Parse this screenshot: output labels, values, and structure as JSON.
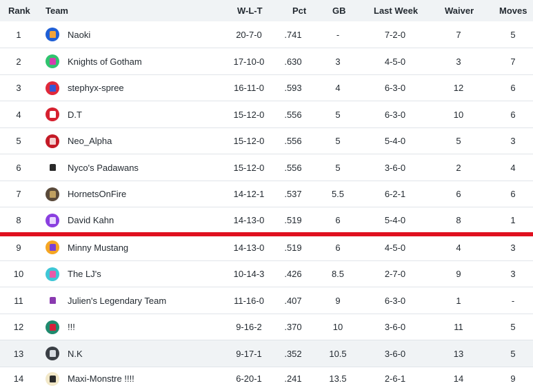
{
  "headers": {
    "rank": "Rank",
    "team": "Team",
    "wlt": "W-L-T",
    "pct": "Pct",
    "gb": "GB",
    "last_week": "Last Week",
    "waiver": "Waiver",
    "moves": "Moves"
  },
  "rows": [
    {
      "rank": "1",
      "team": "Naoki",
      "wlt": "20-7-0",
      "pct": ".741",
      "gb": "-",
      "last_week": "7-2-0",
      "waiver": "7",
      "moves": "5",
      "logo_color": "#1f5fd6",
      "jersey_color": "#f2a33a",
      "logo_icon": "jersey-icon"
    },
    {
      "rank": "2",
      "team": "Knights of Gotham",
      "wlt": "17-10-0",
      "pct": ".630",
      "gb": "3",
      "last_week": "4-5-0",
      "waiver": "3",
      "moves": "7",
      "logo_color": "#2fc46e",
      "jersey_color": "#d63cae",
      "logo_icon": "jersey-icon"
    },
    {
      "rank": "3",
      "team": "stephyx-spree",
      "wlt": "16-11-0",
      "pct": ".593",
      "gb": "4",
      "last_week": "6-3-0",
      "waiver": "12",
      "moves": "6",
      "logo_color": "#e0293a",
      "jersey_color": "#3456d6",
      "logo_icon": "jersey-icon"
    },
    {
      "rank": "4",
      "team": "D.T",
      "wlt": "15-12-0",
      "pct": ".556",
      "gb": "5",
      "last_week": "6-3-0",
      "waiver": "10",
      "moves": "6",
      "logo_color": "#d6202f",
      "jersey_color": "#ffffff",
      "logo_icon": "bull-icon"
    },
    {
      "rank": "5",
      "team": "Neo_Alpha",
      "wlt": "15-12-0",
      "pct": ".556",
      "gb": "5",
      "last_week": "5-4-0",
      "waiver": "5",
      "moves": "3",
      "logo_color": "#c41a26",
      "jersey_color": "#f4d0d0",
      "logo_icon": "swirl-icon"
    },
    {
      "rank": "6",
      "team": "Nyco's Padawans",
      "wlt": "15-12-0",
      "pct": ".556",
      "gb": "5",
      "last_week": "3-6-0",
      "waiver": "2",
      "moves": "4",
      "logo_color": "#ffffff",
      "jersey_color": "#2a2a2a",
      "logo_icon": "figure-icon"
    },
    {
      "rank": "7",
      "team": "HornetsOnFire",
      "wlt": "14-12-1",
      "pct": ".537",
      "gb": "5.5",
      "last_week": "6-2-1",
      "waiver": "6",
      "moves": "6",
      "logo_color": "#5a4a3a",
      "jersey_color": "#c0a060",
      "logo_icon": "photo-icon"
    },
    {
      "rank": "8",
      "team": "David Kahn",
      "wlt": "14-13-0",
      "pct": ".519",
      "gb": "6",
      "last_week": "5-4-0",
      "waiver": "8",
      "moves": "1",
      "logo_color": "#8a3fe0",
      "jersey_color": "#e8d8ff",
      "logo_icon": "jersey-icon"
    },
    {
      "rank": "9",
      "team": "Minny Mustang",
      "wlt": "14-13-0",
      "pct": ".519",
      "gb": "6",
      "last_week": "4-5-0",
      "waiver": "4",
      "moves": "3",
      "logo_color": "#f5a623",
      "jersey_color": "#7a3fd6",
      "logo_icon": "jersey-icon"
    },
    {
      "rank": "10",
      "team": "The LJ's",
      "wlt": "10-14-3",
      "pct": ".426",
      "gb": "8.5",
      "last_week": "2-7-0",
      "waiver": "9",
      "moves": "3",
      "logo_color": "#3ec6d6",
      "jersey_color": "#e85aa8",
      "logo_icon": "jersey-icon"
    },
    {
      "rank": "11",
      "team": "Julien's Legendary Team",
      "wlt": "11-16-0",
      "pct": ".407",
      "gb": "9",
      "last_week": "6-3-0",
      "waiver": "1",
      "moves": "-",
      "logo_color": "#ffffff",
      "jersey_color": "#8a3ab0",
      "logo_icon": "jersey-icon"
    },
    {
      "rank": "12",
      "team": "!!!",
      "wlt": "9-16-2",
      "pct": ".370",
      "gb": "10",
      "last_week": "3-6-0",
      "waiver": "11",
      "moves": "5",
      "logo_color": "#1f8a6e",
      "jersey_color": "#d6203a",
      "logo_icon": "jersey-icon"
    },
    {
      "rank": "13",
      "team": "N.K",
      "wlt": "9-17-1",
      "pct": ".352",
      "gb": "10.5",
      "last_week": "3-6-0",
      "waiver": "13",
      "moves": "5",
      "logo_color": "#3a3f45",
      "jersey_color": "#d8dde2",
      "logo_icon": "jersey-icon"
    },
    {
      "rank": "14",
      "team": "Maxi-Monstre !!!!",
      "wlt": "6-20-1",
      "pct": ".241",
      "gb": "13.5",
      "last_week": "2-6-1",
      "waiver": "14",
      "moves": "9",
      "logo_color": "#f2e8c8",
      "jersey_color": "#2a2a2a",
      "logo_icon": "cartoon-icon"
    }
  ],
  "alt_rows": [
    13
  ],
  "playoff_cutoff_after_rank": "8",
  "colors": {
    "header_bg": "#f0f3f5",
    "row_alt_bg": "#f0f3f5",
    "row_border": "#e0e4e9",
    "cutoff_line": "#e0101f",
    "text": "#232a31"
  }
}
